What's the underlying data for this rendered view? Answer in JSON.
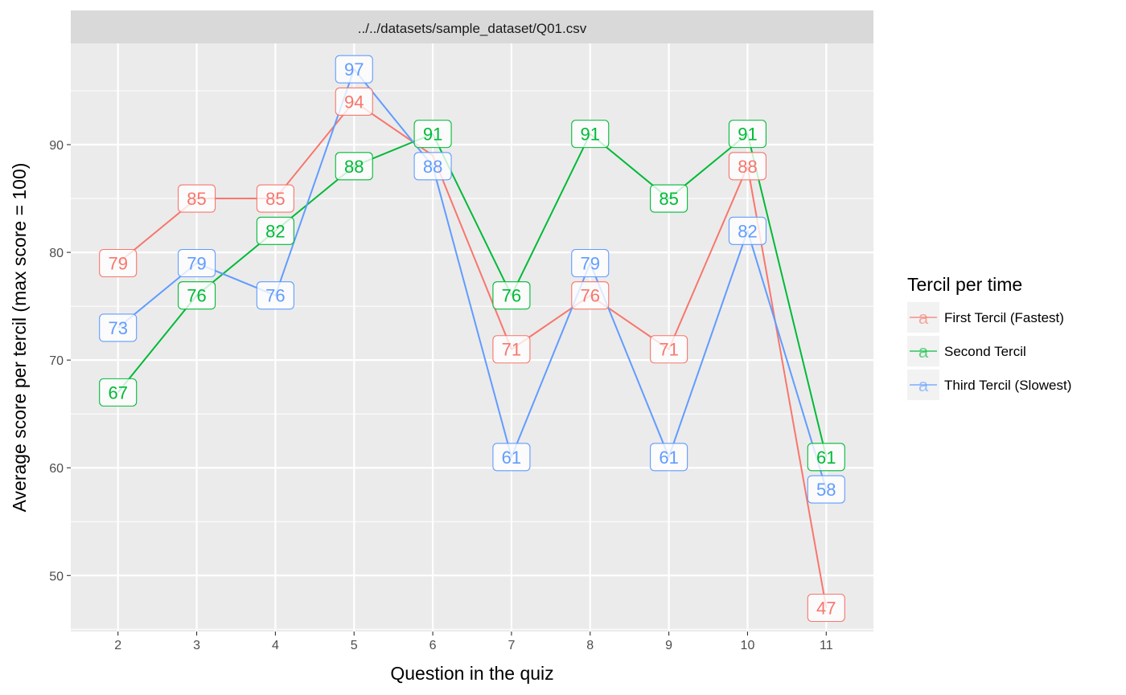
{
  "chart_data": {
    "type": "line",
    "facet_title": "../../datasets/sample_dataset/Q01.csv",
    "xlabel": "Question in the quiz",
    "ylabel": "Average score per tercil (max score = 100)",
    "x": [
      2,
      3,
      4,
      5,
      6,
      7,
      8,
      9,
      10,
      11
    ],
    "x_tick_labels": [
      "2",
      "3",
      "4",
      "5",
      "6",
      "7",
      "8",
      "9",
      "10",
      "11"
    ],
    "y_ticks": [
      50,
      60,
      70,
      80,
      90
    ],
    "y_tick_labels": [
      "50",
      "60",
      "70",
      "80",
      "90"
    ],
    "xlim": [
      1.4,
      11.6
    ],
    "ylim": [
      44.8,
      99.4
    ],
    "grid": true,
    "legend": {
      "title": "Tercil per time",
      "placement": "right",
      "key_glyph": "a"
    },
    "series": [
      {
        "name": "First Tercil (Fastest)",
        "color": "#F8766D",
        "values": [
          79,
          85,
          85,
          94,
          89,
          71,
          76,
          71,
          88,
          47
        ],
        "labels": [
          "79",
          "85",
          "85",
          "94",
          "",
          "71",
          "76",
          "71",
          "88",
          "47"
        ]
      },
      {
        "name": "Second Tercil",
        "color": "#00BA38",
        "values": [
          67,
          76,
          82,
          88,
          91,
          76,
          91,
          85,
          91,
          61
        ],
        "labels": [
          "67",
          "76",
          "82",
          "88",
          "91",
          "76",
          "91",
          "85",
          "91",
          "61"
        ]
      },
      {
        "name": "Third Tercil (Slowest)",
        "color": "#619CFF",
        "values": [
          73,
          79,
          76,
          97,
          88,
          61,
          79,
          61,
          82,
          58
        ],
        "labels": [
          "73",
          "79",
          "76",
          "97",
          "88",
          "61",
          "79",
          "61",
          "82",
          "58"
        ]
      }
    ]
  }
}
